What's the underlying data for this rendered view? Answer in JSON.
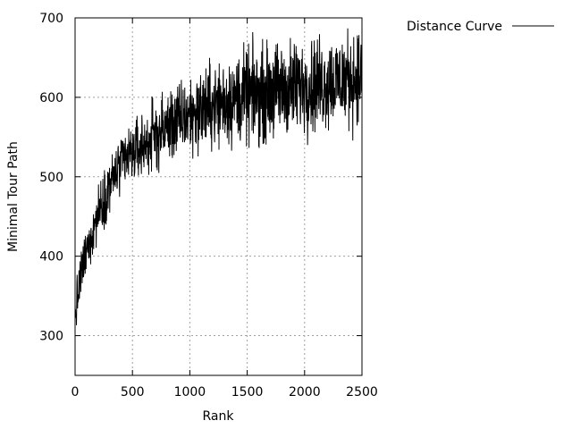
{
  "chart_data": {
    "type": "line",
    "title": "",
    "xlabel": "Rank",
    "ylabel": "Minimal Tour Path",
    "xlim": [
      0,
      2500
    ],
    "ylim": [
      250,
      700
    ],
    "xticks": [
      0,
      500,
      1000,
      1500,
      2000,
      2500
    ],
    "yticks": [
      300,
      400,
      500,
      600,
      700
    ],
    "grid": true,
    "legend": {
      "placement": "top-right-outside"
    },
    "series": [
      {
        "name": "Distance Curve",
        "style": "noisy-line",
        "x": [
          0,
          50,
          100,
          200,
          300,
          400,
          500,
          600,
          700,
          800,
          900,
          1000,
          1100,
          1200,
          1300,
          1400,
          1500,
          1600,
          1700,
          1800,
          1900,
          2000,
          2100,
          2200,
          2300,
          2400,
          2500
        ],
        "values": [
          325,
          375,
          405,
          455,
          490,
          515,
          530,
          540,
          552,
          562,
          570,
          578,
          584,
          590,
          594,
          598,
          601,
          604,
          607,
          610,
          612,
          615,
          617,
          619,
          621,
          624,
          627
        ]
      }
    ]
  }
}
